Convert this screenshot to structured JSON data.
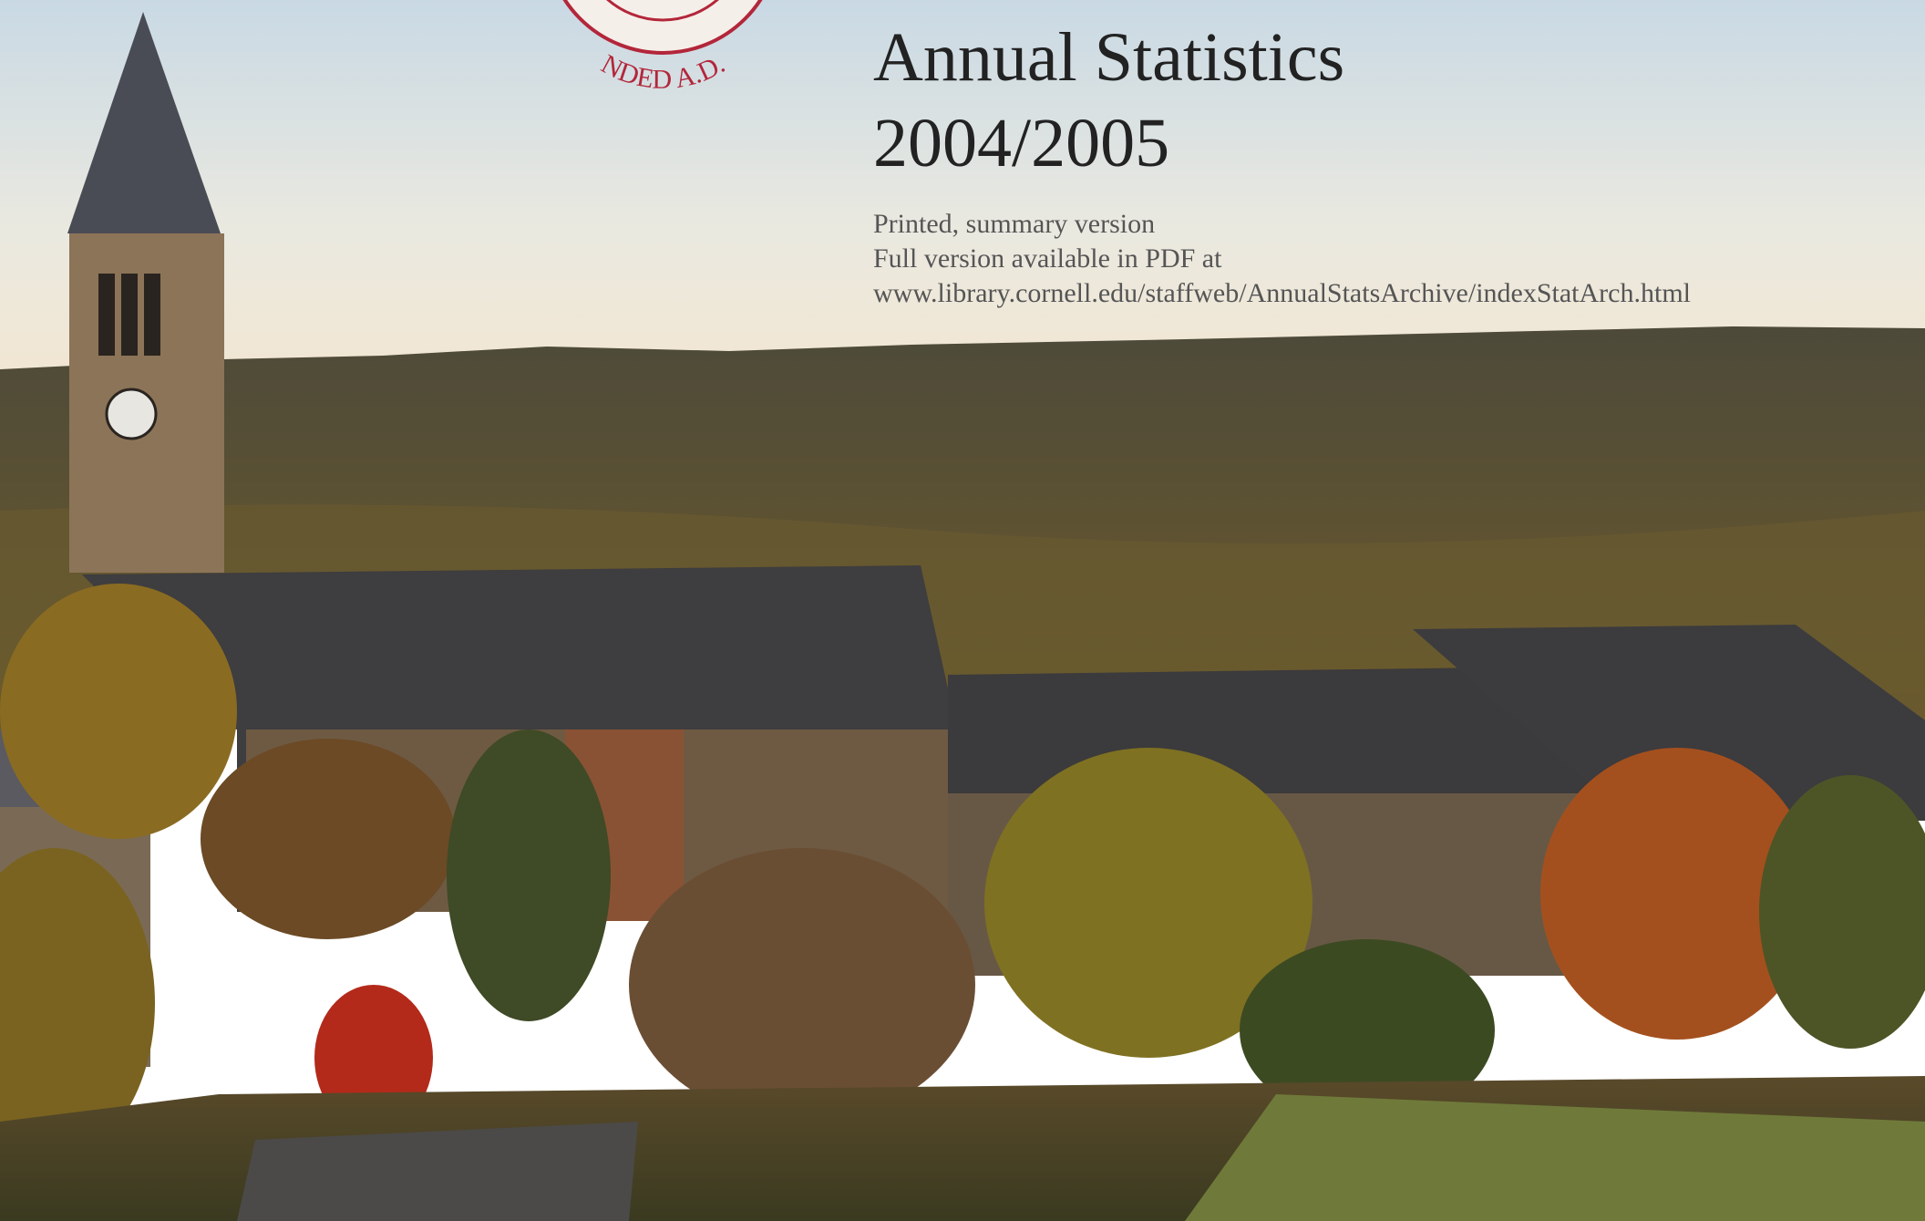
{
  "seal": {
    "text": "NDED A.D."
  },
  "header": {
    "title": "Annual Statistics",
    "years": "2004/2005"
  },
  "notes": [
    "Printed, summary version",
    "Full version available in PDF at",
    "www.library.cornell.edu/staffweb/AnnualStatsArchive/indexStatArch.html"
  ]
}
